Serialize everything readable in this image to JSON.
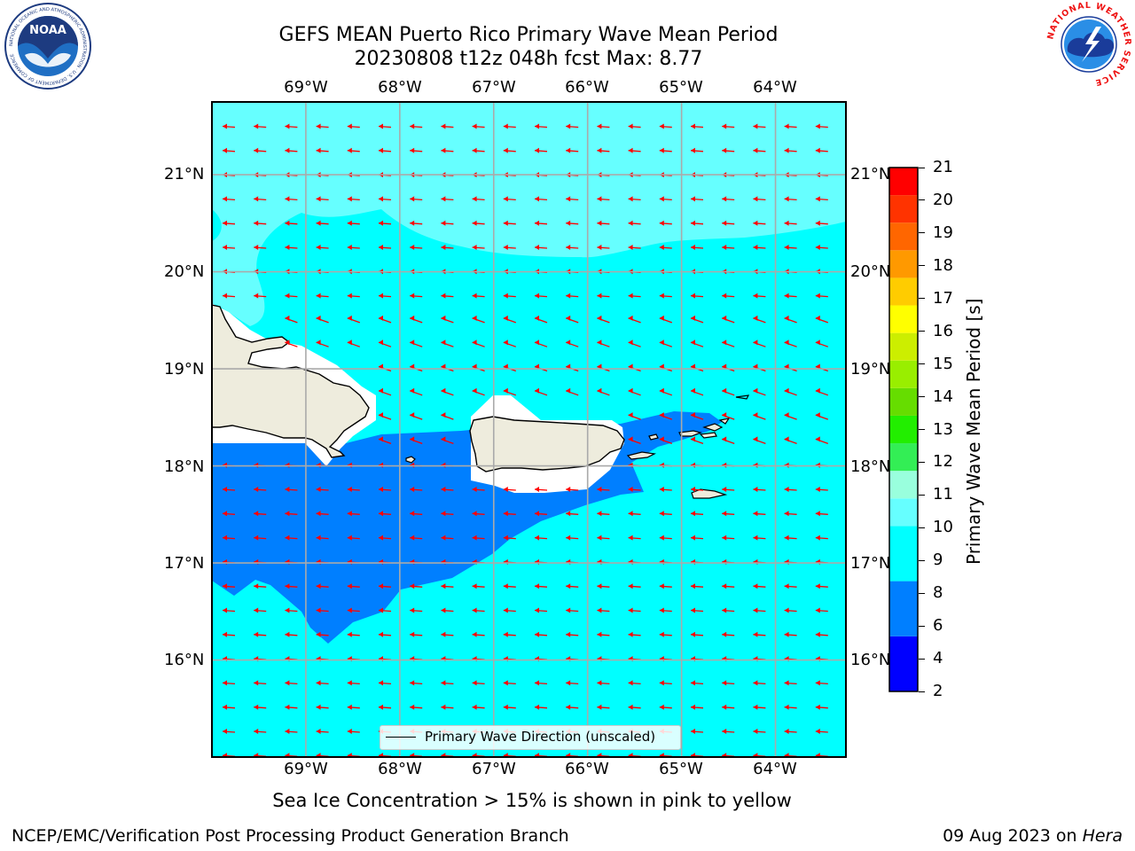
{
  "header": {
    "title_line1": "GEFS MEAN Puerto Rico Primary Wave Mean Period",
    "title_line2": "20230808 t12z 048h fcst   Max: 8.77"
  },
  "logos": {
    "noaa_text": "NOAA",
    "noaa_ring_text": "NATIONAL OCEANIC AND ATMOSPHERIC ADMINISTRATION · U.S. DEPARTMENT OF COMMERCE",
    "nws_ring_text": "NATIONAL WEATHER SERVICE"
  },
  "map": {
    "lon_labels": [
      "69°W",
      "68°W",
      "67°W",
      "66°W",
      "65°W",
      "64°W"
    ],
    "lat_labels": [
      "21°N",
      "20°N",
      "19°N",
      "18°N",
      "17°N",
      "16°N"
    ],
    "lon_range": [
      -70.0,
      -63.25
    ],
    "lat_range": [
      15.0,
      21.75
    ],
    "grid": true,
    "land_color": "#eeecdd",
    "arrow_color": "#ff0000",
    "legend_label": "Primary Wave Direction (unscaled)"
  },
  "colorbar": {
    "label": "Primary Wave Mean Period [s]",
    "ticks": [
      "21",
      "20",
      "19",
      "18",
      "17",
      "16",
      "15",
      "14",
      "13",
      "12",
      "11",
      "10",
      "9",
      "8",
      "6",
      "4",
      "2"
    ],
    "bands": [
      {
        "from": 2,
        "to": 4,
        "color": "#0000ff"
      },
      {
        "from": 4,
        "to": 6,
        "color": "#007fff"
      },
      {
        "from": 6,
        "to": 8,
        "color": "#00ffff"
      },
      {
        "from": 8,
        "to": 9,
        "color": "#66ffff"
      },
      {
        "from": 9,
        "to": 10,
        "color": "#99ffdd"
      },
      {
        "from": 10,
        "to": 11,
        "color": "#33ee55"
      },
      {
        "from": 11,
        "to": 12,
        "color": "#22ee00"
      },
      {
        "from": 12,
        "to": 13,
        "color": "#66dd00"
      },
      {
        "from": 13,
        "to": 14,
        "color": "#99ee00"
      },
      {
        "from": 14,
        "to": 15,
        "color": "#ccee00"
      },
      {
        "from": 15,
        "to": 16,
        "color": "#ffff00"
      },
      {
        "from": 16,
        "to": 17,
        "color": "#ffcc00"
      },
      {
        "from": 17,
        "to": 18,
        "color": "#ff9900"
      },
      {
        "from": 18,
        "to": 19,
        "color": "#ff6600"
      },
      {
        "from": 19,
        "to": 20,
        "color": "#ff3300"
      },
      {
        "from": 20,
        "to": 21,
        "color": "#ff0000"
      }
    ]
  },
  "footer": {
    "sea_ice_note": "Sea Ice Concentration > 15% is shown in pink to yellow",
    "credit_left": "NCEP/EMC/Verification Post Processing Product Generation Branch",
    "date_prefix": "09 Aug 2023 on ",
    "machine": "Hera"
  }
}
